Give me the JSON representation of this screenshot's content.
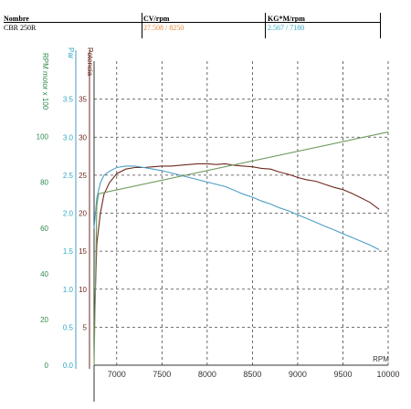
{
  "header": {
    "columns": [
      {
        "label": "Nombre",
        "value": "CBR 250R"
      },
      {
        "label": "CV/rpm",
        "value": "27.508 / 8250"
      },
      {
        "label": "KG*M/rpm",
        "value": "2.567 / 7180"
      }
    ]
  },
  "colors": {
    "potencia": "#6e2a20",
    "par": "#4a9ec4",
    "rpm_motor": "#6f9a5e",
    "par_text": "#2fa9c6",
    "cv_text": "#e0883a",
    "rpm_axis": "#2f8a4c",
    "grid": "#444444"
  },
  "chart_data": {
    "type": "line",
    "xlabel": "RPM",
    "xlim": [
      6750,
      10000
    ],
    "xticks": [
      7000,
      7500,
      8000,
      8500,
      9000,
      9500,
      10000
    ],
    "grid": true,
    "axes": [
      {
        "id": "rpm",
        "label": "RPM motor x 100",
        "ticks": [
          0,
          20,
          40,
          60,
          80,
          100
        ],
        "tick_labels": [
          "0",
          "20",
          "40",
          "60",
          "80",
          "100"
        ],
        "range": [
          0,
          133
        ]
      },
      {
        "id": "par",
        "label": "Par",
        "ticks": [
          0,
          0.5,
          1.0,
          1.5,
          2.0,
          2.5,
          3.0,
          3.5
        ],
        "tick_labels": [
          "0.0",
          "0.5",
          "1.0",
          "1.5",
          "2.0",
          "2.5",
          "3.0",
          "3.5"
        ],
        "range": [
          0,
          4.0
        ]
      },
      {
        "id": "potencia",
        "label": "Potencia",
        "ticks": [
          5,
          10,
          15,
          20,
          25,
          30,
          35
        ],
        "tick_labels": [
          "5",
          "10",
          "15",
          "20",
          "25",
          "30",
          "35"
        ],
        "range": [
          0,
          40
        ]
      }
    ],
    "series": [
      {
        "id": "potencia",
        "axis": "potencia",
        "x": [
          6750,
          6780,
          6820,
          6860,
          6920,
          7000,
          7100,
          7200,
          7300,
          7400,
          7500,
          7600,
          7700,
          7800,
          7900,
          8000,
          8100,
          8200,
          8300,
          8400,
          8500,
          8600,
          8700,
          8800,
          8900,
          9000,
          9100,
          9200,
          9300,
          9400,
          9500,
          9600,
          9700,
          9800,
          9900
        ],
        "y": [
          4,
          16,
          20,
          22.5,
          24,
          25.2,
          25.8,
          26.0,
          26.0,
          26.1,
          26.2,
          26.2,
          26.3,
          26.4,
          26.5,
          26.5,
          26.4,
          26.5,
          26.3,
          26.2,
          26.1,
          25.9,
          25.8,
          25.4,
          25.1,
          24.7,
          24.4,
          24.2,
          23.8,
          23.4,
          23.1,
          22.6,
          22.0,
          21.4,
          20.5
        ]
      },
      {
        "id": "par",
        "axis": "par",
        "x": [
          6750,
          6780,
          6820,
          6860,
          6920,
          7000,
          7100,
          7200,
          7300,
          7400,
          7500,
          7600,
          7700,
          7800,
          7900,
          8000,
          8100,
          8200,
          8300,
          8400,
          8500,
          8600,
          8700,
          8800,
          8900,
          9000,
          9100,
          9200,
          9300,
          9400,
          9500,
          9600,
          9700,
          9800,
          9900
        ],
        "y": [
          1.8,
          2.2,
          2.4,
          2.5,
          2.55,
          2.6,
          2.62,
          2.62,
          2.6,
          2.58,
          2.56,
          2.53,
          2.5,
          2.47,
          2.44,
          2.41,
          2.38,
          2.35,
          2.3,
          2.25,
          2.21,
          2.16,
          2.12,
          2.07,
          2.03,
          1.98,
          1.93,
          1.88,
          1.83,
          1.78,
          1.73,
          1.68,
          1.63,
          1.58,
          1.52
        ]
      },
      {
        "id": "rpm_motor",
        "axis": "rpm",
        "x": [
          6750,
          6780,
          6800,
          10000
        ],
        "y": [
          0,
          70,
          75,
          102
        ]
      }
    ]
  }
}
